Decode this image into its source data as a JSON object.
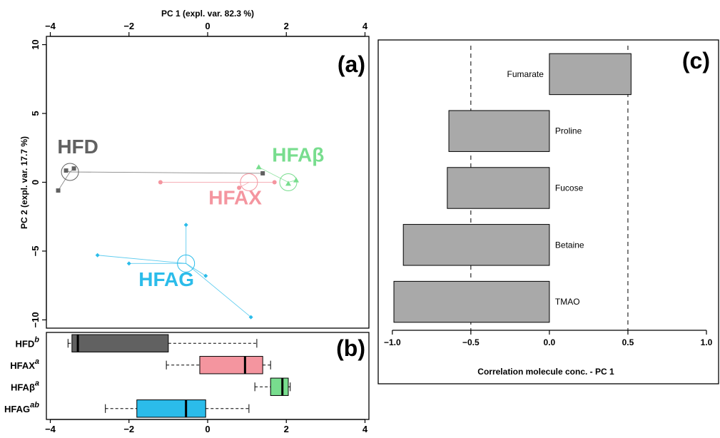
{
  "chart_data": [
    {
      "id": "a",
      "type": "scatter",
      "panel_label": "(a)",
      "xlabel": "PC 1 (expl. var. 82.3 %)",
      "ylabel": "PC 2 (expl. var. 17.7 %)",
      "xlim": [
        -4.1,
        4.1
      ],
      "ylim": [
        -10.6,
        10.6
      ],
      "xticks": [
        -4,
        -2,
        0,
        2,
        4
      ],
      "yticks": [
        -10,
        -5,
        0,
        5,
        10
      ],
      "xtick_labels": [
        "−4",
        "−2",
        "0",
        "2",
        "4"
      ],
      "ytick_labels": [
        "−10",
        "−5",
        "0",
        "5",
        "10"
      ],
      "series": [
        {
          "name": "HFD",
          "label": "HFD",
          "color": "#616161",
          "marker": "square",
          "centroid": [
            -3.5,
            0.75
          ],
          "label_pos": [
            -3.3,
            2.1
          ],
          "points": [
            [
              -3.6,
              0.85
            ],
            [
              -3.4,
              1.0
            ],
            [
              -3.8,
              -0.6
            ],
            [
              1.4,
              0.65
            ]
          ]
        },
        {
          "name": "HFAX",
          "label": "HFAX",
          "color": "#f4959f",
          "marker": "circle",
          "centroid": [
            1.05,
            0.0
          ],
          "label_pos": [
            0.7,
            -1.6
          ],
          "points": [
            [
              -1.2,
              0.0
            ],
            [
              0.8,
              -0.4
            ],
            [
              1.7,
              0.0
            ]
          ]
        },
        {
          "name": "HFAβ",
          "label": "HFAβ",
          "color": "#78dd8e",
          "marker": "triangle",
          "centroid": [
            2.05,
            0.0
          ],
          "label_pos": [
            2.3,
            1.5
          ],
          "points": [
            [
              1.3,
              1.1
            ],
            [
              2.05,
              -0.1
            ],
            [
              2.25,
              0.15
            ]
          ]
        },
        {
          "name": "HFAG",
          "label": "HFAG",
          "color": "#2bbcea",
          "marker": "diamond",
          "centroid": [
            -0.55,
            -5.9
          ],
          "label_pos": [
            -1.05,
            -7.55
          ],
          "points": [
            [
              -0.55,
              -3.1
            ],
            [
              -2.8,
              -5.3
            ],
            [
              -2.0,
              -5.9
            ],
            [
              -0.05,
              -6.8
            ],
            [
              1.1,
              -9.8
            ]
          ]
        }
      ]
    },
    {
      "id": "b",
      "type": "box",
      "panel_label": "(b)",
      "xlim": [
        -4.1,
        4.1
      ],
      "xticks": [
        -4,
        -2,
        0,
        2,
        4
      ],
      "xtick_labels": [
        "−4",
        "−2",
        "0",
        "2",
        "4"
      ],
      "groups": [
        {
          "label": "HFD",
          "sup": "b",
          "color": "#616161",
          "min": -3.55,
          "q1": -3.45,
          "median": -3.3,
          "q3": -1.0,
          "max": 1.25
        },
        {
          "label": "HFAX",
          "sup": "a",
          "color": "#f4959f",
          "min": -1.05,
          "q1": -0.2,
          "median": 0.95,
          "q3": 1.4,
          "max": 1.6
        },
        {
          "label": "HFAβ",
          "sup": "a",
          "color": "#78dd8e",
          "min": 1.2,
          "q1": 1.6,
          "median": 1.9,
          "q3": 2.05,
          "max": 2.1
        },
        {
          "label": "HFAG",
          "sup": "ab",
          "color": "#2bbcea",
          "min": -2.6,
          "q1": -1.8,
          "median": -0.55,
          "q3": -0.05,
          "max": 1.05
        }
      ]
    },
    {
      "id": "c",
      "type": "bar",
      "orientation": "horizontal",
      "panel_label": "(c)",
      "xlabel": "Correlation molecule conc. - PC 1",
      "xlim": [
        -1.04,
        1.0
      ],
      "xticks": [
        -1.0,
        -0.5,
        0.0,
        0.5,
        1.0
      ],
      "xtick_labels": [
        "−1.0",
        "−0.5",
        "0.0",
        "0.5",
        "1.0"
      ],
      "reference_lines": [
        -0.5,
        0.5
      ],
      "bar_color": "#a9a9a9",
      "categories": [
        "Fumarate",
        "Proline",
        "Fucose",
        "Betaine",
        "TMAO"
      ],
      "values": [
        0.52,
        -0.64,
        -0.65,
        -0.93,
        -0.99
      ]
    }
  ]
}
